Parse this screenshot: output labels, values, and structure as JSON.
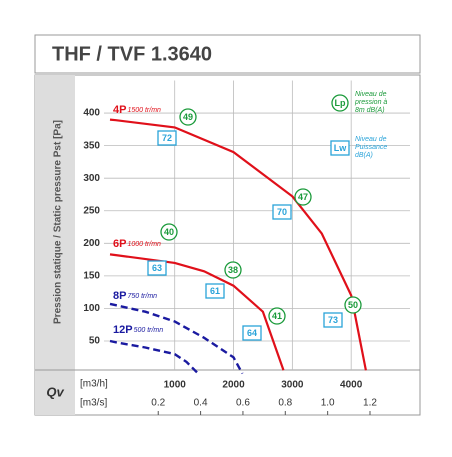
{
  "chart_data": {
    "type": "line",
    "title": "THF / TVF 1.3640",
    "ylabel": "Pression statique / Static pressure Pst [Pa]",
    "xlabel": "Qv",
    "xunit": "[m3/h]",
    "x2unit": "[m3/s]",
    "xlim": [
      -100,
      5000
    ],
    "xticks": [
      1000,
      2000,
      3000,
      4000
    ],
    "x2lim": [
      -0.02778,
      1.38889
    ],
    "x2ticks": [
      0.2,
      0.4,
      0.6,
      0.8,
      {
        "value": 1,
        "label": "1.0"
      },
      1.2
    ],
    "ylim": [
      0,
      450
    ],
    "yticks": [
      50,
      100,
      150,
      200,
      250,
      300,
      350,
      400
    ],
    "grid": true,
    "legend": [
      {
        "symbol": "Lp",
        "color": "#1a9a3a",
        "lines": [
          "Niveau de",
          "pression à",
          "8m dB(A)"
        ]
      },
      {
        "symbol": "Lw",
        "color": "#29a3d9",
        "lines": [
          "Niveau de",
          "Puissance",
          "dB(A)"
        ]
      }
    ],
    "series": [
      {
        "name": "4P",
        "speed": "1500 tr/mn",
        "color": "#e0101a",
        "dashed": false,
        "x": [
          -100,
          0,
          1000,
          2000,
          3000,
          3500,
          4000,
          4250
        ],
        "values": [
          390,
          389,
          378,
          340,
          272,
          215,
          120,
          5
        ],
        "lp": [
          "49",
          "47",
          "50"
        ],
        "lw": [
          "72",
          "70",
          "73"
        ]
      },
      {
        "name": "6P",
        "speed": "1000 tr/mn",
        "color": "#e0101a",
        "dashed": false,
        "x": [
          -100,
          0,
          1000,
          1500,
          2000,
          2500,
          2850
        ],
        "values": [
          183,
          182,
          170,
          157,
          135,
          95,
          5
        ],
        "lp": [
          "40",
          "38",
          "41"
        ],
        "lw": [
          "63",
          "61",
          "64"
        ]
      },
      {
        "name": "8P",
        "speed": "750 tr/mn",
        "color": "#1a1aa0",
        "dashed": true,
        "x": [
          -100,
          0,
          500,
          1000,
          1500,
          2000,
          2150
        ],
        "values": [
          107,
          105,
          95,
          80,
          55,
          25,
          0
        ],
        "lp": [],
        "lw": []
      },
      {
        "name": "12P",
        "speed": "500 tr/mn",
        "color": "#1a1aa0",
        "dashed": true,
        "x": [
          -100,
          0,
          500,
          1000,
          1200,
          1400
        ],
        "values": [
          50,
          48,
          40,
          30,
          18,
          0
        ],
        "lp": [],
        "lw": []
      }
    ]
  }
}
